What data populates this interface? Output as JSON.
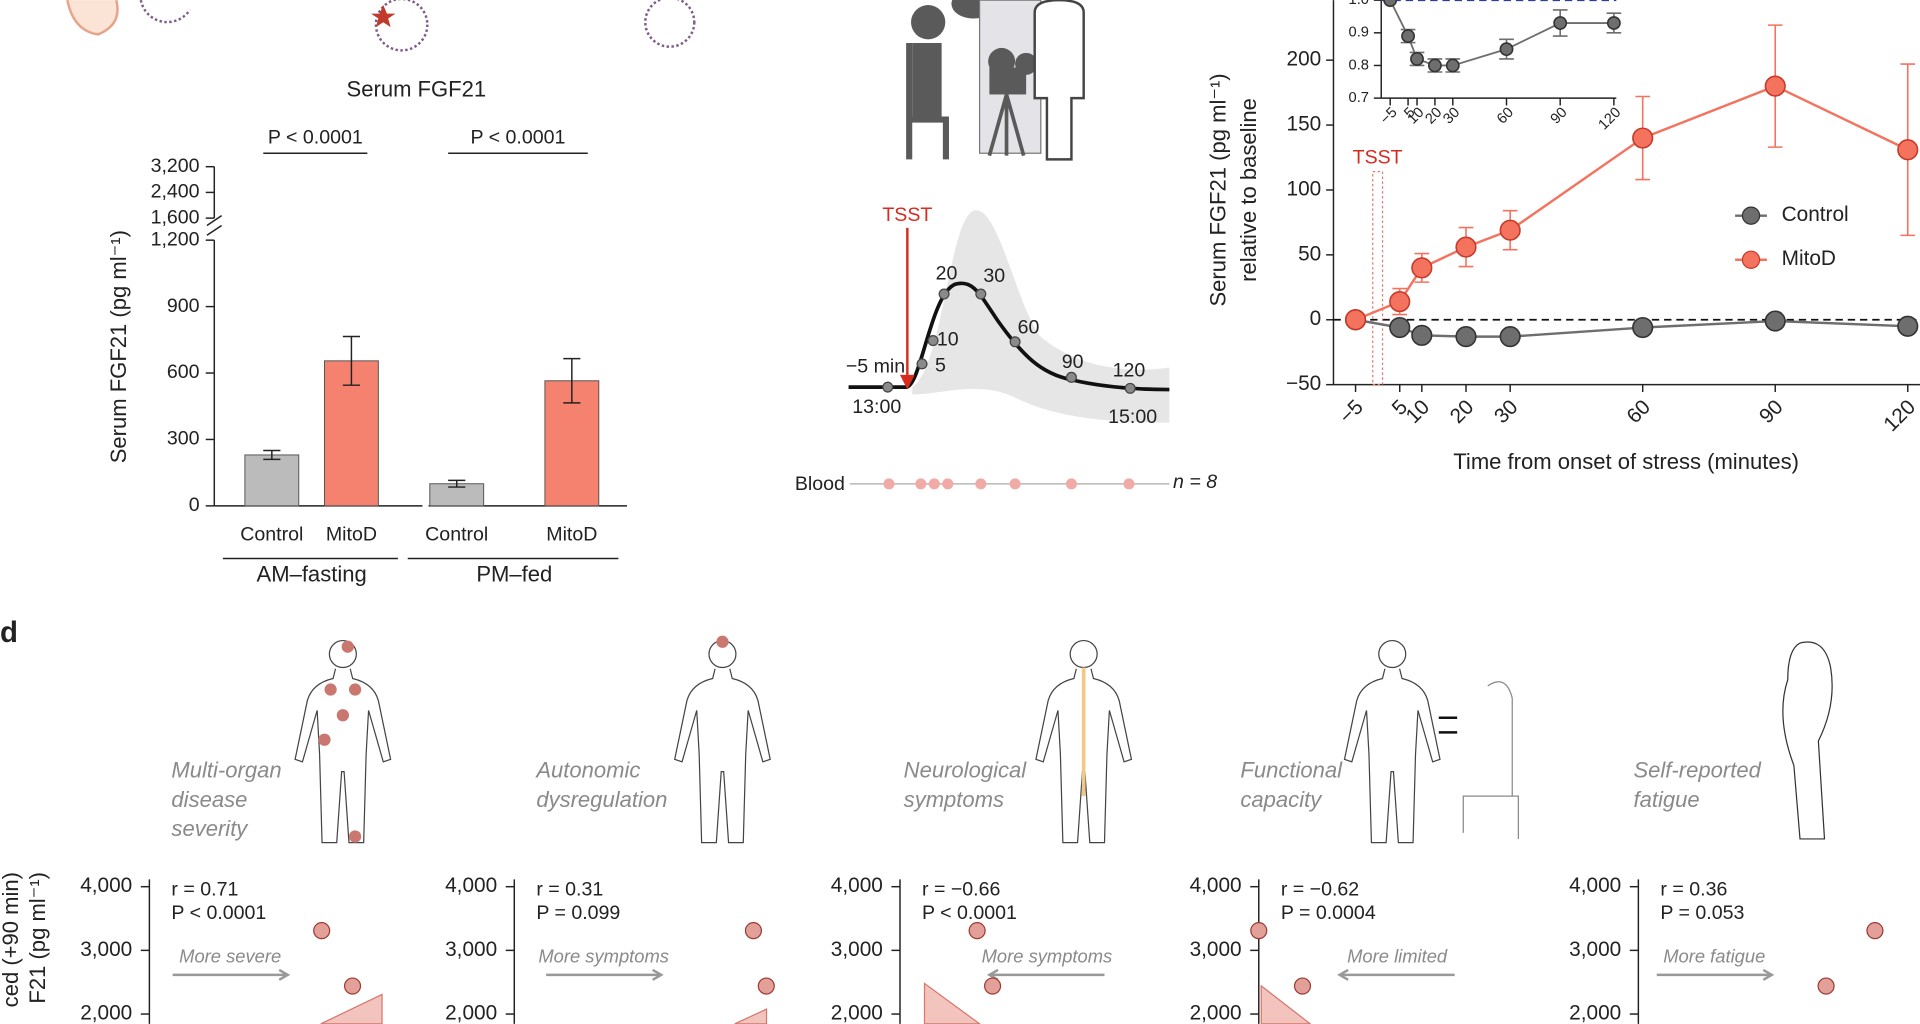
{
  "panel_labels": {
    "d": "d"
  },
  "tsst_schematic": {
    "stressor": "TSST",
    "timepoints": [
      "−5 min",
      "5",
      "10",
      "20",
      "30",
      "60",
      "90",
      "120"
    ],
    "start_time": "13:00",
    "end_time": "15:00",
    "sample_label": "Blood",
    "sample_n": "n = 8"
  },
  "panel_d_y_label": [
    "ced (+90 min)",
    "F21 (pg ml⁻¹)"
  ],
  "domains": [
    [
      "Multi-organ",
      "disease",
      "severity"
    ],
    [
      "Autonomic",
      "dysregulation"
    ],
    [
      "Neurological",
      "symptoms"
    ],
    [
      "Functional",
      "capacity"
    ],
    [
      "Self-reported",
      "fatigue"
    ]
  ],
  "chart_data": [
    {
      "type": "bar",
      "title": "Serum FGF21",
      "y_label": "Serum FGF21 (pg ml⁻¹)",
      "categories": [
        "Control",
        "MitoD",
        "Control",
        "MitoD"
      ],
      "values": [
        230,
        655,
        100,
        565
      ],
      "errors": [
        20,
        110,
        15,
        100
      ],
      "colors": [
        "#b4b4b4",
        "#f4735f",
        "#b4b4b4",
        "#f4735f"
      ],
      "groups": [
        "AM–fasting",
        "PM–fed"
      ],
      "group_p_values": [
        "P < 0.0001",
        "P < 0.0001"
      ],
      "ylim": [
        0,
        1200
      ],
      "yticks": [
        0,
        300,
        600,
        900,
        {
          "value": 1200,
          "label": "1,200"
        }
      ],
      "ylim_upper": [
        1600,
        3200
      ],
      "yticks_upper": [
        {
          "value": 1600,
          "label": "1,600"
        },
        {
          "value": 2400,
          "label": "2,400"
        },
        {
          "value": 3200,
          "label": "3,200"
        }
      ]
    },
    {
      "type": "line",
      "y_label": [
        "Serum FGF21 (pg ml⁻¹)",
        "relative to baseline"
      ],
      "x_label": "Time from onset of stress (minutes)",
      "x": [
        -5,
        5,
        10,
        20,
        30,
        60,
        90,
        120
      ],
      "xlim": [
        -10,
        120
      ],
      "xticks": [
        {
          "value": -5,
          "label": "−5"
        },
        5,
        10,
        20,
        30,
        60,
        90,
        120
      ],
      "ylim": [
        -50,
        200
      ],
      "yticks": [
        {
          "value": -50,
          "label": "−50"
        },
        0,
        50,
        100,
        150,
        200
      ],
      "annotation": "TSST",
      "reference_line": 0,
      "series": [
        {
          "name": "Control",
          "color": "#6e6e6e",
          "values": [
            0,
            -6,
            -12,
            -13,
            -13,
            -6,
            -1,
            -5
          ],
          "errors": [
            2,
            4,
            4,
            4,
            4,
            4,
            4,
            5
          ]
        },
        {
          "name": "MitoD",
          "color": "#f4735f",
          "values": [
            0,
            14,
            40,
            56,
            69,
            140,
            180,
            131
          ],
          "errors": [
            null,
            10,
            11,
            15,
            15,
            32,
            47,
            66
          ]
        }
      ]
    },
    {
      "type": "line",
      "x": [
        -5,
        5,
        10,
        20,
        30,
        60,
        90,
        120
      ],
      "xlim": [
        -10,
        120
      ],
      "xticks": [
        {
          "value": -5,
          "label": "−5"
        },
        5,
        10,
        20,
        30,
        60,
        90,
        120
      ],
      "ylim": [
        0.7,
        1.0
      ],
      "yticks": [
        0.7,
        0.8,
        0.9,
        {
          "value": 1,
          "label": "1.0"
        }
      ],
      "reference_line": 1,
      "series": [
        {
          "name": "Control",
          "color": "#6e6e6e",
          "values": [
            1.0,
            0.89,
            0.82,
            0.8,
            0.8,
            0.85,
            0.93,
            0.93
          ],
          "errors": [
            null,
            0.02,
            0.02,
            0.02,
            0.02,
            0.03,
            0.04,
            0.03
          ]
        }
      ]
    },
    {
      "type": "scatter",
      "r_label": "r = 0.71",
      "p_label": "P < 0.0001",
      "direction_label": "More severe",
      "direction": "right",
      "x": [
        67,
        79
      ],
      "values": [
        3310,
        2440
      ],
      "xlim": [
        0,
        100
      ],
      "ylim": [
        2000,
        4000
      ],
      "yticks": [
        {
          "value": 2000,
          "label": "2,000"
        },
        {
          "value": 3000,
          "label": "3,000"
        },
        {
          "value": 4000,
          "label": "4,000"
        }
      ]
    },
    {
      "type": "scatter",
      "r_label": "r = 0.31",
      "p_label": "P = 0.099",
      "direction_label": "More symptoms",
      "direction": "right",
      "x": [
        93,
        98
      ],
      "values": [
        3310,
        2440
      ],
      "xlim": [
        0,
        100
      ],
      "ylim": [
        2000,
        4000
      ],
      "yticks": [
        {
          "value": 2000,
          "label": "2,000"
        },
        {
          "value": 3000,
          "label": "3,000"
        },
        {
          "value": 4000,
          "label": "4,000"
        }
      ]
    },
    {
      "type": "scatter",
      "r_label": "r = −0.66",
      "p_label": "P < 0.0001",
      "direction_label": "More symptoms",
      "direction": "left",
      "x": [
        30,
        36
      ],
      "values": [
        3310,
        2440
      ],
      "xlim": [
        0,
        100
      ],
      "ylim": [
        2000,
        4000
      ],
      "yticks": [
        {
          "value": 2000,
          "label": "2,000"
        },
        {
          "value": 3000,
          "label": "3,000"
        },
        {
          "value": 4000,
          "label": "4,000"
        }
      ]
    },
    {
      "type": "scatter",
      "r_label": "r = −0.62",
      "p_label": "P = 0.0004",
      "direction_label": "More limited",
      "direction": "left",
      "x": [
        0,
        17
      ],
      "values": [
        3310,
        2440
      ],
      "xlim": [
        0,
        100
      ],
      "ylim": [
        2000,
        4000
      ],
      "yticks": [
        {
          "value": 2000,
          "label": "2,000"
        },
        {
          "value": 3000,
          "label": "3,000"
        },
        {
          "value": 4000,
          "label": "4,000"
        }
      ]
    },
    {
      "type": "scatter",
      "r_label": "r = 0.36",
      "p_label": "P = 0.053",
      "direction_label": "More fatigue",
      "direction": "right",
      "x": [
        92,
        73
      ],
      "values": [
        3310,
        2440
      ],
      "xlim": [
        0,
        100
      ],
      "ylim": [
        2000,
        4000
      ],
      "yticks": [
        {
          "value": 2000,
          "label": "2,000"
        },
        {
          "value": 3000,
          "label": "3,000"
        },
        {
          "value": 4000,
          "label": "4,000"
        }
      ]
    }
  ]
}
